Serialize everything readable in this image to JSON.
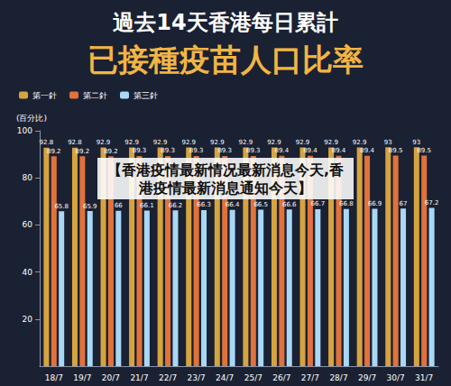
{
  "chart_data": {
    "type": "bar",
    "title": "過去14天香港每日累計",
    "subtitle": "已接種疫苗人口比率",
    "annotation": "【香港疫情最新情况最新消息今天,香港疫情最新消息通知今天】",
    "y_label": "(百分比)",
    "categories": [
      "18/7",
      "19/7",
      "20/7",
      "21/7",
      "22/7",
      "23/7",
      "24/7",
      "25/7",
      "26/7",
      "27/7",
      "28/7",
      "29/7",
      "30/7",
      "31/7"
    ],
    "series": [
      {
        "name": "第一針",
        "color": "#d6a43f",
        "values": [
          92.8,
          92.8,
          92.9,
          92.9,
          92.9,
          92.9,
          92.9,
          92.9,
          92.9,
          92.9,
          92.9,
          92.9,
          93,
          93
        ]
      },
      {
        "name": "第二針",
        "color": "#e2723a",
        "values": [
          89.2,
          89.2,
          89.2,
          89.3,
          89.3,
          89.3,
          89.3,
          89.3,
          89.4,
          89.4,
          89.4,
          89.4,
          89.5,
          89.5
        ]
      },
      {
        "name": "第三針",
        "color": "#a9d8f5",
        "values": [
          65.8,
          65.9,
          66.0,
          66.1,
          66.2,
          66.3,
          66.4,
          66.5,
          66.6,
          66.7,
          66.8,
          66.9,
          67,
          67.2
        ]
      }
    ],
    "ylim": [
      0,
      100
    ],
    "yticks": [
      20,
      40,
      60,
      80,
      100
    ],
    "grid": false,
    "legend": "top-left",
    "data_labels": true
  }
}
